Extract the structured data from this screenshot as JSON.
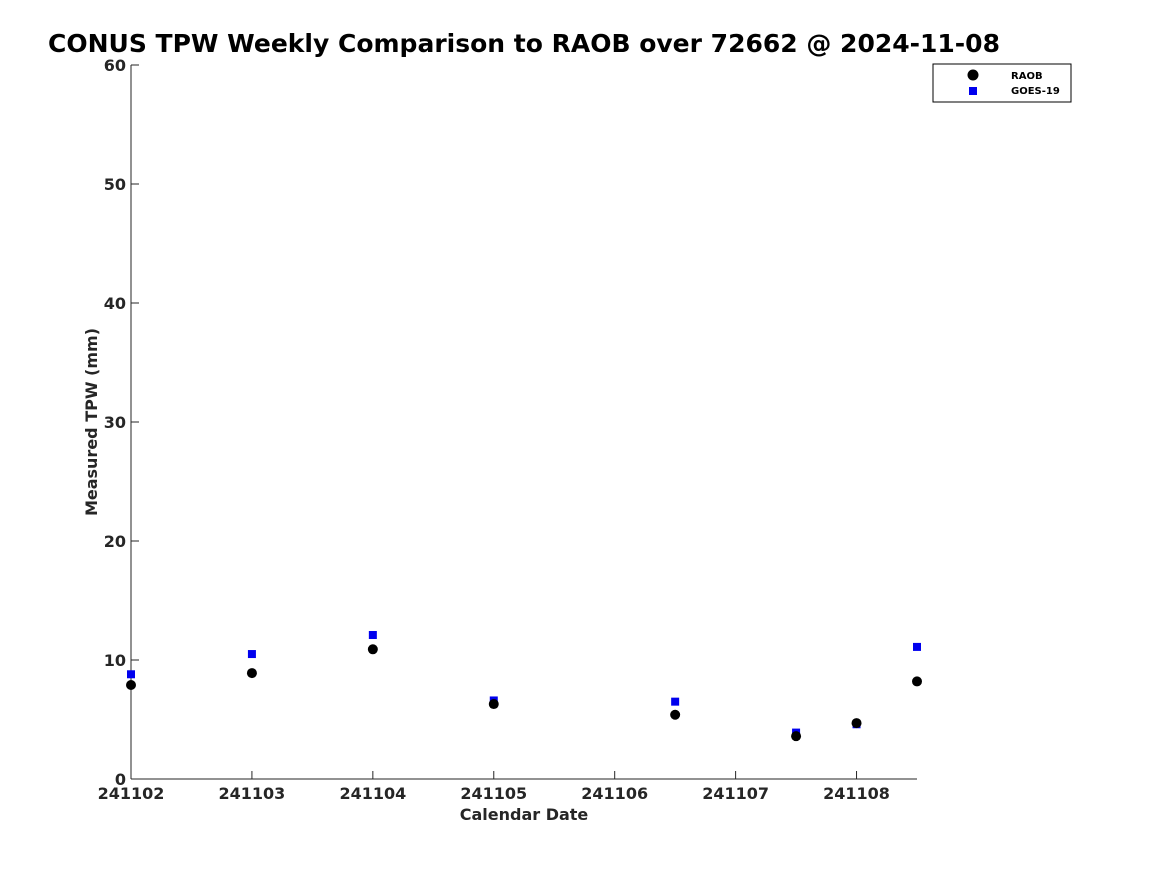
{
  "chart_data": {
    "type": "scatter",
    "title": "CONUS TPW Weekly Comparison to RAOB over 72662 @ 2024-11-08",
    "xlabel": "Calendar Date",
    "ylabel": "Measured TPW (mm)",
    "xlim": [
      241102,
      241108.5
    ],
    "ylim": [
      0,
      60
    ],
    "x_ticks": [
      "241102",
      "241103",
      "241104",
      "241105",
      "241106",
      "241107",
      "241108"
    ],
    "y_ticks": [
      "0",
      "10",
      "20",
      "30",
      "40",
      "50",
      "60"
    ],
    "grid": false,
    "legend_position": "top-right",
    "series": [
      {
        "name": "RAOB",
        "marker": "circle",
        "color": "#000000",
        "x": [
          241102,
          241103,
          241104,
          241105,
          241106.5,
          241107.5,
          241108,
          241108.5
        ],
        "values": [
          7.9,
          8.9,
          10.9,
          6.3,
          5.4,
          3.6,
          4.7,
          8.2
        ]
      },
      {
        "name": "GOES-19",
        "marker": "square",
        "color": "#0000ee",
        "x": [
          241102,
          241103,
          241104,
          241105,
          241106.5,
          241107.5,
          241108,
          241108.5
        ],
        "values": [
          8.8,
          10.5,
          12.1,
          6.6,
          6.5,
          3.9,
          4.6,
          11.1
        ]
      }
    ]
  }
}
